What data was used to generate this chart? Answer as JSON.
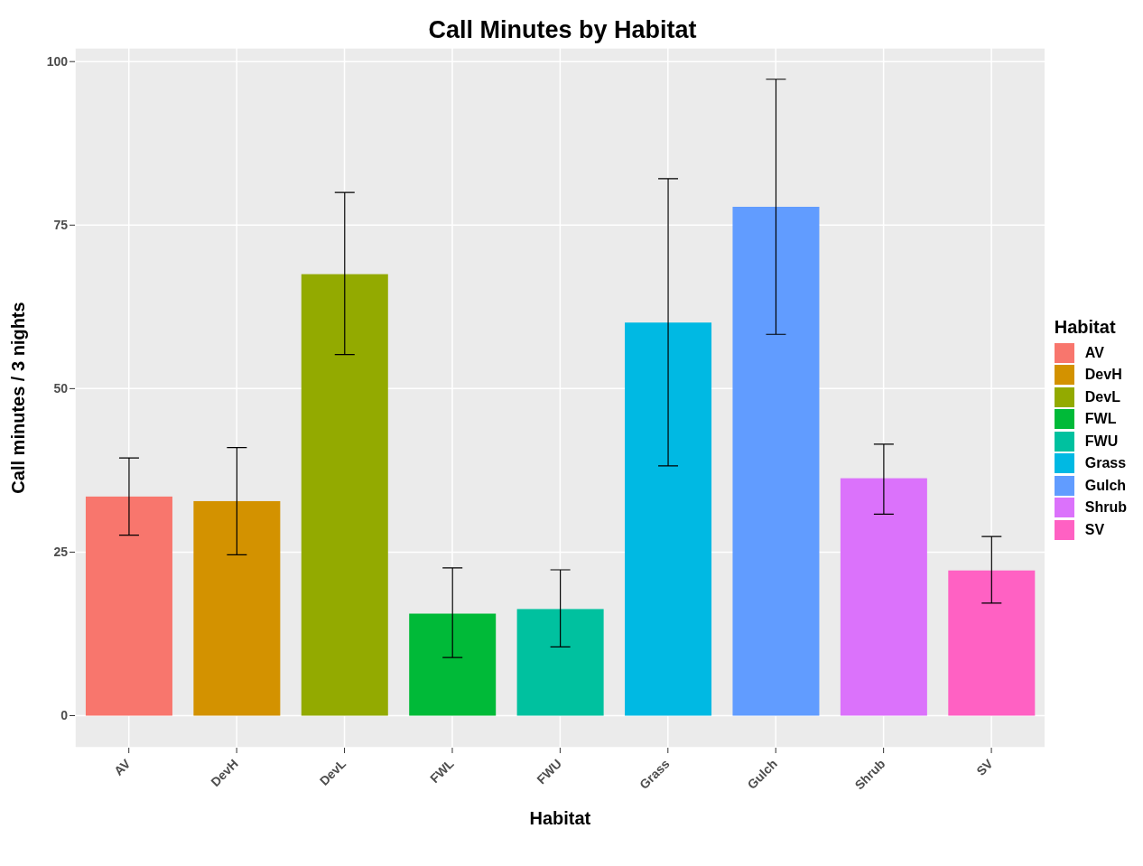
{
  "chart_data": {
    "type": "bar",
    "title": "Call Minutes by Habitat",
    "xlabel": "Habitat",
    "ylabel": "Call minutes / 3 nights",
    "legend_title": "Habitat",
    "categories": [
      "AV",
      "DevH",
      "DevL",
      "FWL",
      "FWU",
      "Grass",
      "Gulch",
      "Shrub",
      "SV"
    ],
    "series": [
      {
        "name": "AV",
        "color": "#f8766d",
        "values": [
          33.5,
          null,
          null,
          null,
          null,
          null,
          null,
          null,
          null
        ],
        "errors": [
          [
            27.6,
            39.4
          ],
          null,
          null,
          null,
          null,
          null,
          null,
          null,
          null
        ]
      },
      {
        "name": "DevH",
        "color": "#d39200",
        "values": [
          null,
          32.8,
          null,
          null,
          null,
          null,
          null,
          null,
          null
        ],
        "errors": [
          null,
          [
            24.6,
            41.0
          ],
          null,
          null,
          null,
          null,
          null,
          null,
          null
        ]
      },
      {
        "name": "DevL",
        "color": "#93aa00",
        "values": [
          null,
          null,
          67.5,
          null,
          null,
          null,
          null,
          null,
          null
        ],
        "errors": [
          null,
          null,
          [
            55.2,
            80.0
          ],
          null,
          null,
          null,
          null,
          null,
          null
        ]
      },
      {
        "name": "FWL",
        "color": "#00ba38",
        "values": [
          null,
          null,
          null,
          15.6,
          null,
          null,
          null,
          null,
          null
        ],
        "errors": [
          null,
          null,
          null,
          [
            8.9,
            22.6
          ],
          null,
          null,
          null,
          null,
          null
        ]
      },
      {
        "name": "FWU",
        "color": "#00c19f",
        "values": [
          null,
          null,
          null,
          null,
          16.3,
          null,
          null,
          null,
          null
        ],
        "errors": [
          null,
          null,
          null,
          null,
          [
            10.5,
            22.3
          ],
          null,
          null,
          null,
          null
        ]
      },
      {
        "name": "Grass",
        "color": "#00b9e3",
        "values": [
          null,
          null,
          null,
          null,
          null,
          60.1,
          null,
          null,
          null
        ],
        "errors": [
          null,
          null,
          null,
          null,
          null,
          [
            38.2,
            82.1
          ],
          null,
          null,
          null
        ]
      },
      {
        "name": "Gulch",
        "color": "#619cff",
        "values": [
          null,
          null,
          null,
          null,
          null,
          null,
          77.8,
          null,
          null
        ],
        "errors": [
          null,
          null,
          null,
          null,
          null,
          null,
          [
            58.3,
            97.3
          ],
          null,
          null
        ]
      },
      {
        "name": "Shrub",
        "color": "#db72fb",
        "values": [
          null,
          null,
          null,
          null,
          null,
          null,
          null,
          36.3,
          null
        ],
        "errors": [
          null,
          null,
          null,
          null,
          null,
          null,
          null,
          [
            30.8,
            41.5
          ],
          null
        ]
      },
      {
        "name": "SV",
        "color": "#ff61c3",
        "values": [
          null,
          null,
          null,
          null,
          null,
          null,
          null,
          null,
          22.2
        ],
        "errors": [
          null,
          null,
          null,
          null,
          null,
          null,
          null,
          null,
          [
            17.2,
            27.4
          ]
        ]
      }
    ],
    "stacked": true,
    "ylim": [
      -4.9,
      102.1
    ],
    "yticks": [
      0,
      25,
      50,
      75,
      100
    ],
    "grid": true,
    "legend": "right"
  }
}
